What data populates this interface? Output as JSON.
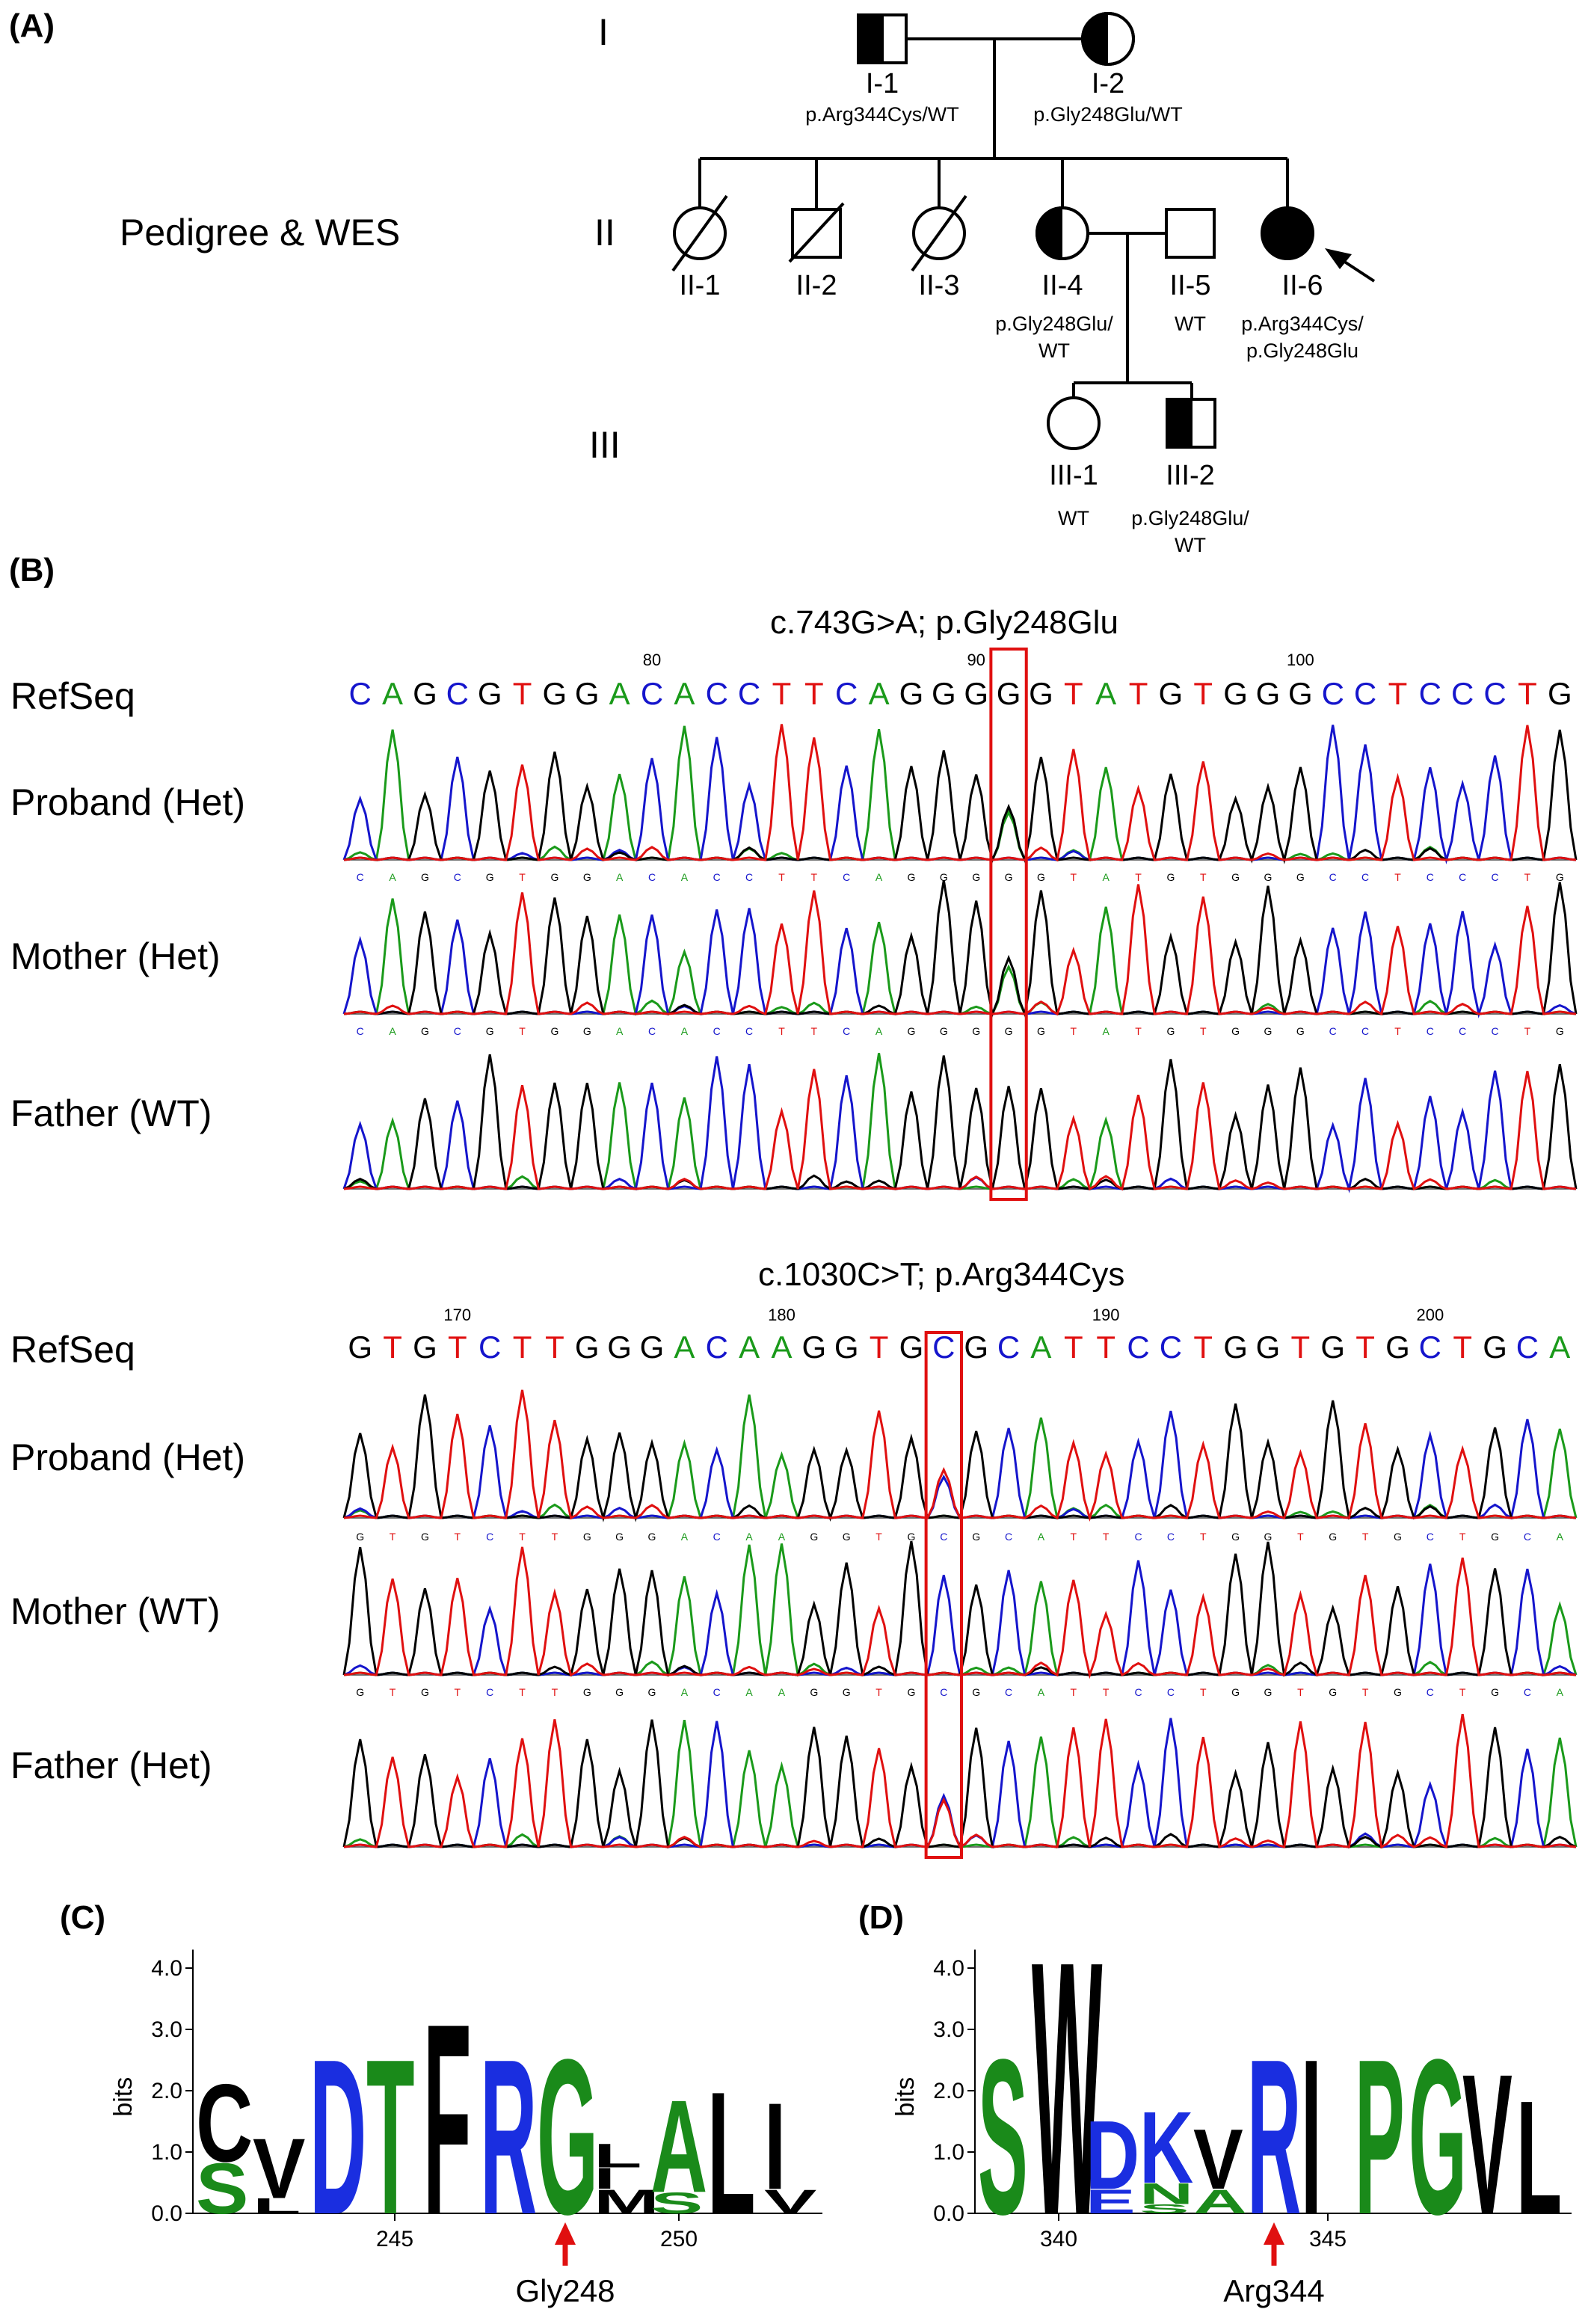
{
  "panels": {
    "A": "(A)",
    "B": "(B)",
    "C": "(C)",
    "D": "(D)"
  },
  "pedigree": {
    "title": "Pedigree & WES",
    "generations": [
      "I",
      "II",
      "III"
    ],
    "individuals": [
      {
        "id": "I-1",
        "genotype": [
          "p.Arg344Cys/WT"
        ],
        "sex": "male",
        "status": "carrier"
      },
      {
        "id": "I-2",
        "genotype": [
          "p.Gly248Glu/WT"
        ],
        "sex": "female",
        "status": "carrier"
      },
      {
        "id": "II-1",
        "genotype": [],
        "sex": "female",
        "status": "deceased"
      },
      {
        "id": "II-2",
        "genotype": [],
        "sex": "male",
        "status": "deceased"
      },
      {
        "id": "II-3",
        "genotype": [],
        "sex": "female",
        "status": "deceased"
      },
      {
        "id": "II-4",
        "genotype": [
          "p.Gly248Glu/",
          "WT"
        ],
        "sex": "female",
        "status": "carrier"
      },
      {
        "id": "II-5",
        "genotype": [
          "WT"
        ],
        "sex": "male",
        "status": "unaffected"
      },
      {
        "id": "II-6",
        "genotype": [
          "p.Arg344Cys/",
          "p.Gly248Glu"
        ],
        "sex": "female",
        "status": "affected-proband"
      },
      {
        "id": "III-1",
        "genotype": [
          "WT"
        ],
        "sex": "female",
        "status": "unaffected"
      },
      {
        "id": "III-2",
        "genotype": [
          "p.Gly248Glu/",
          "WT"
        ],
        "sex": "male",
        "status": "carrier"
      }
    ]
  },
  "chromatograms": [
    {
      "title": "c.743G>A; p.Gly248Glu",
      "refseq_label": "RefSeq",
      "refseq": "CAGCGTGGACACCTTCAGGGGGTATGTGGGCCTCCCTG",
      "positions": [
        {
          "label": "80",
          "index": 9
        },
        {
          "label": "90",
          "index": 19
        },
        {
          "label": "100",
          "index": 29
        }
      ],
      "highlight_index": 20,
      "traces": [
        {
          "label": "Proband (Het)",
          "show_calls": true
        },
        {
          "label": "Mother (Het)",
          "show_calls": true
        },
        {
          "label": "Father (WT)",
          "show_calls": false
        }
      ]
    },
    {
      "title": "c.1030C>T; p.Arg344Cys",
      "refseq_label": "RefSeq",
      "refseq": "GTGTCTTGGGACAAGGTGCGCATTCCTGGTGTGCTGCA",
      "positions": [
        {
          "label": "170",
          "index": 3
        },
        {
          "label": "180",
          "index": 13
        },
        {
          "label": "190",
          "index": 23
        },
        {
          "label": "200",
          "index": 33
        }
      ],
      "highlight_index": 18,
      "traces": [
        {
          "label": "Proband (Het)",
          "show_calls": true
        },
        {
          "label": "Mother (WT)",
          "show_calls": true
        },
        {
          "label": "Father (Het)",
          "show_calls": false
        }
      ]
    }
  ],
  "base_colors": {
    "A": "#1a9a1a",
    "C": "#1515cc",
    "G": "#000000",
    "T": "#e01010"
  },
  "logos": [
    {
      "panel": "(C)",
      "ylabel": "bits",
      "yticks": [
        "0.0",
        "1.0",
        "2.0",
        "3.0",
        "4.0"
      ],
      "xticks": [
        {
          "label": "245",
          "col": 3
        },
        {
          "label": "250",
          "col": 8
        }
      ],
      "arrow_label": "Gly248",
      "arrow_col": 6,
      "columns": [
        [
          {
            "l": "S",
            "h": 0.85
          },
          {
            "l": "C",
            "h": 1.3
          }
        ],
        [
          {
            "l": "L",
            "h": 0.25
          },
          {
            "l": "V",
            "h": 1.0
          }
        ],
        [
          {
            "l": "D",
            "h": 2.6
          }
        ],
        [
          {
            "l": "T",
            "h": 2.6
          }
        ],
        [
          {
            "l": "F",
            "h": 3.2
          }
        ],
        [
          {
            "l": "R",
            "h": 2.6
          }
        ],
        [
          {
            "l": "G",
            "h": 2.6
          }
        ],
        [
          {
            "l": "M",
            "h": 0.4
          },
          {
            "l": "I",
            "h": 0.35
          },
          {
            "l": "L",
            "h": 0.4
          }
        ],
        [
          {
            "l": "S",
            "h": 0.35
          },
          {
            "l": "A",
            "h": 1.55
          }
        ],
        [
          {
            "l": "L",
            "h": 2.05
          }
        ],
        [
          {
            "l": "V",
            "h": 0.4
          },
          {
            "l": "I",
            "h": 1.45
          }
        ]
      ]
    },
    {
      "panel": "(D)",
      "ylabel": "bits",
      "yticks": [
        "0.0",
        "1.0",
        "2.0",
        "3.0",
        "4.0"
      ],
      "xticks": [
        {
          "label": "340",
          "col": 1
        },
        {
          "label": "345",
          "col": 6
        }
      ],
      "arrow_label": "Arg344",
      "arrow_col": 5,
      "columns": [
        [
          {
            "l": "S",
            "h": 2.6
          }
        ],
        [
          {
            "l": "W",
            "h": 4.25
          }
        ],
        [
          {
            "l": "E",
            "h": 0.4
          },
          {
            "l": "D",
            "h": 1.15
          }
        ],
        [
          {
            "l": "S",
            "h": 0.15
          },
          {
            "l": "N",
            "h": 0.35
          },
          {
            "l": "K",
            "h": 1.2
          }
        ],
        [
          {
            "l": "A",
            "h": 0.4
          },
          {
            "l": "V",
            "h": 1.0
          }
        ],
        [
          {
            "l": "R",
            "h": 2.6
          }
        ],
        [
          {
            "l": "I",
            "h": 2.6
          }
        ],
        [
          {
            "l": "P",
            "h": 2.6
          }
        ],
        [
          {
            "l": "G",
            "h": 2.6
          }
        ],
        [
          {
            "l": "V",
            "h": 2.35
          }
        ],
        [
          {
            "l": "L",
            "h": 1.9
          }
        ]
      ]
    }
  ],
  "aa_colors": {
    "S": "#1a8a1a",
    "C": "#000000",
    "L": "#000000",
    "V": "#000000",
    "D": "#1a2ee0",
    "T": "#1a8a1a",
    "F": "#000000",
    "R": "#1a2ee0",
    "G": "#1a8a1a",
    "M": "#000000",
    "I": "#000000",
    "A": "#1a8a1a",
    "W": "#000000",
    "E": "#1a2ee0",
    "K": "#1a2ee0",
    "N": "#1a8a1a",
    "P": "#1a8a1a"
  }
}
